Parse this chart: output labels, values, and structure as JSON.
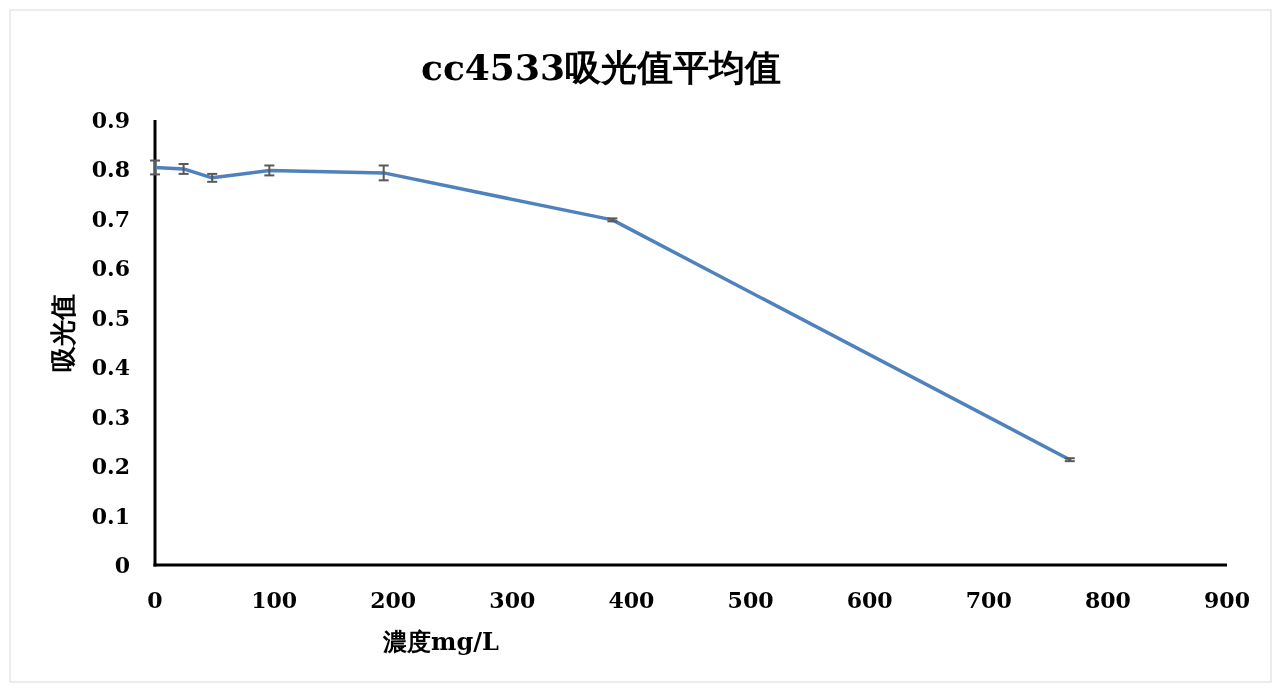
{
  "chart_data": {
    "type": "line",
    "title": "cc4533吸光值平均值",
    "xlabel": "濃度mg/L",
    "ylabel": "吸光值",
    "x": [
      0,
      24,
      48,
      96,
      192,
      384,
      768
    ],
    "series": [
      {
        "color": "#4f81bd",
        "values": [
          0.804,
          0.801,
          0.783,
          0.798,
          0.793,
          0.698,
          0.213
        ],
        "errors": [
          0.014,
          0.01,
          0.008,
          0.01,
          0.015,
          0.003,
          0.003
        ]
      }
    ],
    "xlim": [
      0,
      900
    ],
    "xticks": [
      0,
      100,
      200,
      300,
      400,
      500,
      600,
      700,
      800,
      900
    ],
    "ylim": [
      0,
      0.9
    ],
    "yticks": [
      0,
      0.1,
      0.2,
      0.3,
      0.4,
      0.5,
      0.6,
      0.7,
      0.8,
      0.9
    ],
    "grid": false,
    "marker": "none",
    "line_style": "solid"
  }
}
